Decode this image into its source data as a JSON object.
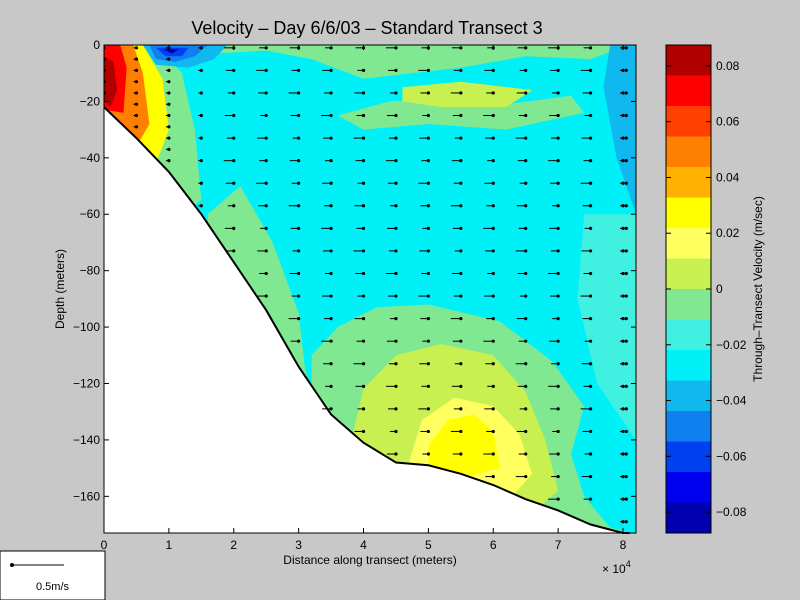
{
  "chart_data": [
    {
      "type": "contour",
      "title": "Velocity – Day 6/6/03 – Standard Transect 3",
      "xlabel": "Distance along transect (meters)",
      "ylabel": "Depth (meters)",
      "x_scale_label": "× 10",
      "x_scale_exponent": "4",
      "xlim": [
        0,
        8.2
      ],
      "ylim": [
        -173,
        0
      ],
      "x_ticks": [
        0,
        1,
        2,
        3,
        4,
        5,
        6,
        7,
        8
      ],
      "y_ticks": [
        0,
        -20,
        -40,
        -60,
        -80,
        -100,
        -120,
        -140,
        -160
      ],
      "bottom_profile": [
        [
          0,
          -22
        ],
        [
          0.5,
          -33
        ],
        [
          1,
          -45
        ],
        [
          1.5,
          -60
        ],
        [
          2,
          -77
        ],
        [
          2.5,
          -94
        ],
        [
          3,
          -114
        ],
        [
          3.5,
          -131
        ],
        [
          4,
          -141
        ],
        [
          4.5,
          -148
        ],
        [
          5,
          -149
        ],
        [
          5.5,
          -152
        ],
        [
          6,
          -156
        ],
        [
          6.5,
          -161
        ],
        [
          7,
          -165
        ],
        [
          7.5,
          -170
        ],
        [
          8,
          -173
        ],
        [
          8.1,
          -173
        ]
      ],
      "stations_x": [
        0,
        0.5,
        1,
        1.5,
        2,
        2.5,
        3,
        3.5,
        4,
        4.5,
        5,
        5.5,
        6,
        6.5,
        7,
        7.5,
        8,
        8.05
      ],
      "colorbar": {
        "label": "Through–Transect Velocity (m/sec)",
        "range": [
          -0.0875,
          0.0875
        ],
        "tick_labels": [
          "0.08",
          "0.06",
          "0.04",
          "0.02",
          "0",
          "−0.02",
          "−0.04",
          "−0.06",
          "−0.08"
        ],
        "tick_values": [
          0.08,
          0.06,
          0.04,
          0.02,
          0,
          -0.02,
          -0.04,
          -0.06,
          -0.08
        ],
        "colors_top_to_bottom": [
          "#b00000",
          "#ff0000",
          "#ff4000",
          "#ff8000",
          "#ffb000",
          "#ffff00",
          "#ffff60",
          "#c8f050",
          "#80e890",
          "#40f0e0",
          "#00f0f8",
          "#10b8f0",
          "#1080f0",
          "#0040f0",
          "#0000f0",
          "#0000b0"
        ]
      },
      "contour_colors": {
        "green": "#80e890",
        "lightgreen": "#c8f050",
        "cyan": "#00f0f8",
        "cyan_light": "#40f0e0",
        "blue_mid": "#10b8f0",
        "blue": "#1080f0",
        "blue_dark": "#0040f0",
        "navy": "#0000b0",
        "yellow": "#ffff00",
        "yellow_light": "#ffff60",
        "orange": "#ff8000",
        "red": "#ff0000",
        "darkred": "#b00000"
      }
    }
  ],
  "legend": {
    "scale_label": "0.5m/s"
  }
}
